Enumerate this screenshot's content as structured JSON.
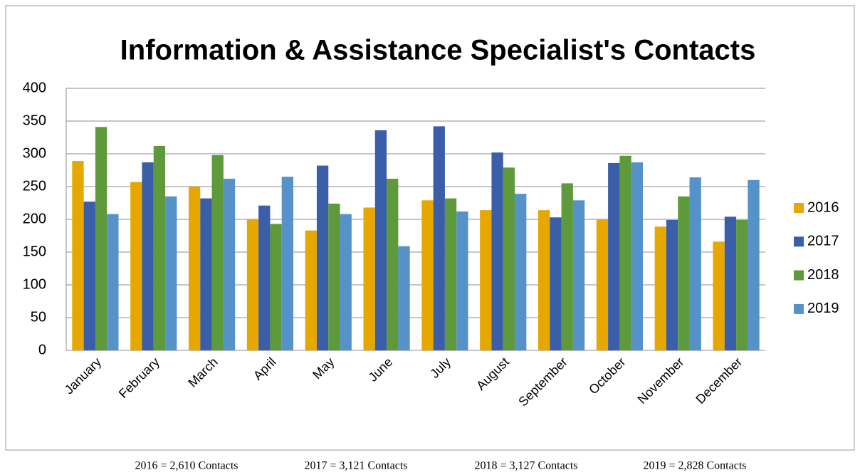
{
  "chart_data": {
    "type": "bar",
    "title": "Information & Assistance Specialist's Contacts",
    "categories": [
      "January",
      "February",
      "March",
      "April",
      "May",
      "June",
      "July",
      "August",
      "September",
      "October",
      "November",
      "December"
    ],
    "series": [
      {
        "name": "2016",
        "color": "#e6a800",
        "values": [
          289,
          257,
          250,
          200,
          183,
          218,
          229,
          214,
          214,
          200,
          189,
          166
        ]
      },
      {
        "name": "2017",
        "color": "#3a5ea8",
        "values": [
          227,
          287,
          232,
          221,
          282,
          336,
          342,
          302,
          203,
          286,
          199,
          204
        ]
      },
      {
        "name": "2018",
        "color": "#5e9a3c",
        "values": [
          341,
          312,
          298,
          193,
          224,
          262,
          232,
          279,
          255,
          297,
          235,
          199
        ]
      },
      {
        "name": "2019",
        "color": "#5592c8",
        "values": [
          208,
          235,
          262,
          265,
          208,
          159,
          212,
          239,
          229,
          287,
          264,
          260
        ]
      }
    ],
    "ylim": [
      0,
      400
    ],
    "yticks": [
      0,
      50,
      100,
      150,
      200,
      250,
      300,
      350,
      400
    ],
    "grid": true,
    "legend": "right",
    "annotations": [
      "2016 = 2,610 Contacts",
      "2017 = 3,121 Contacts",
      "2018 = 3,127 Contacts",
      "2019 = 2,828 Contacts"
    ]
  }
}
